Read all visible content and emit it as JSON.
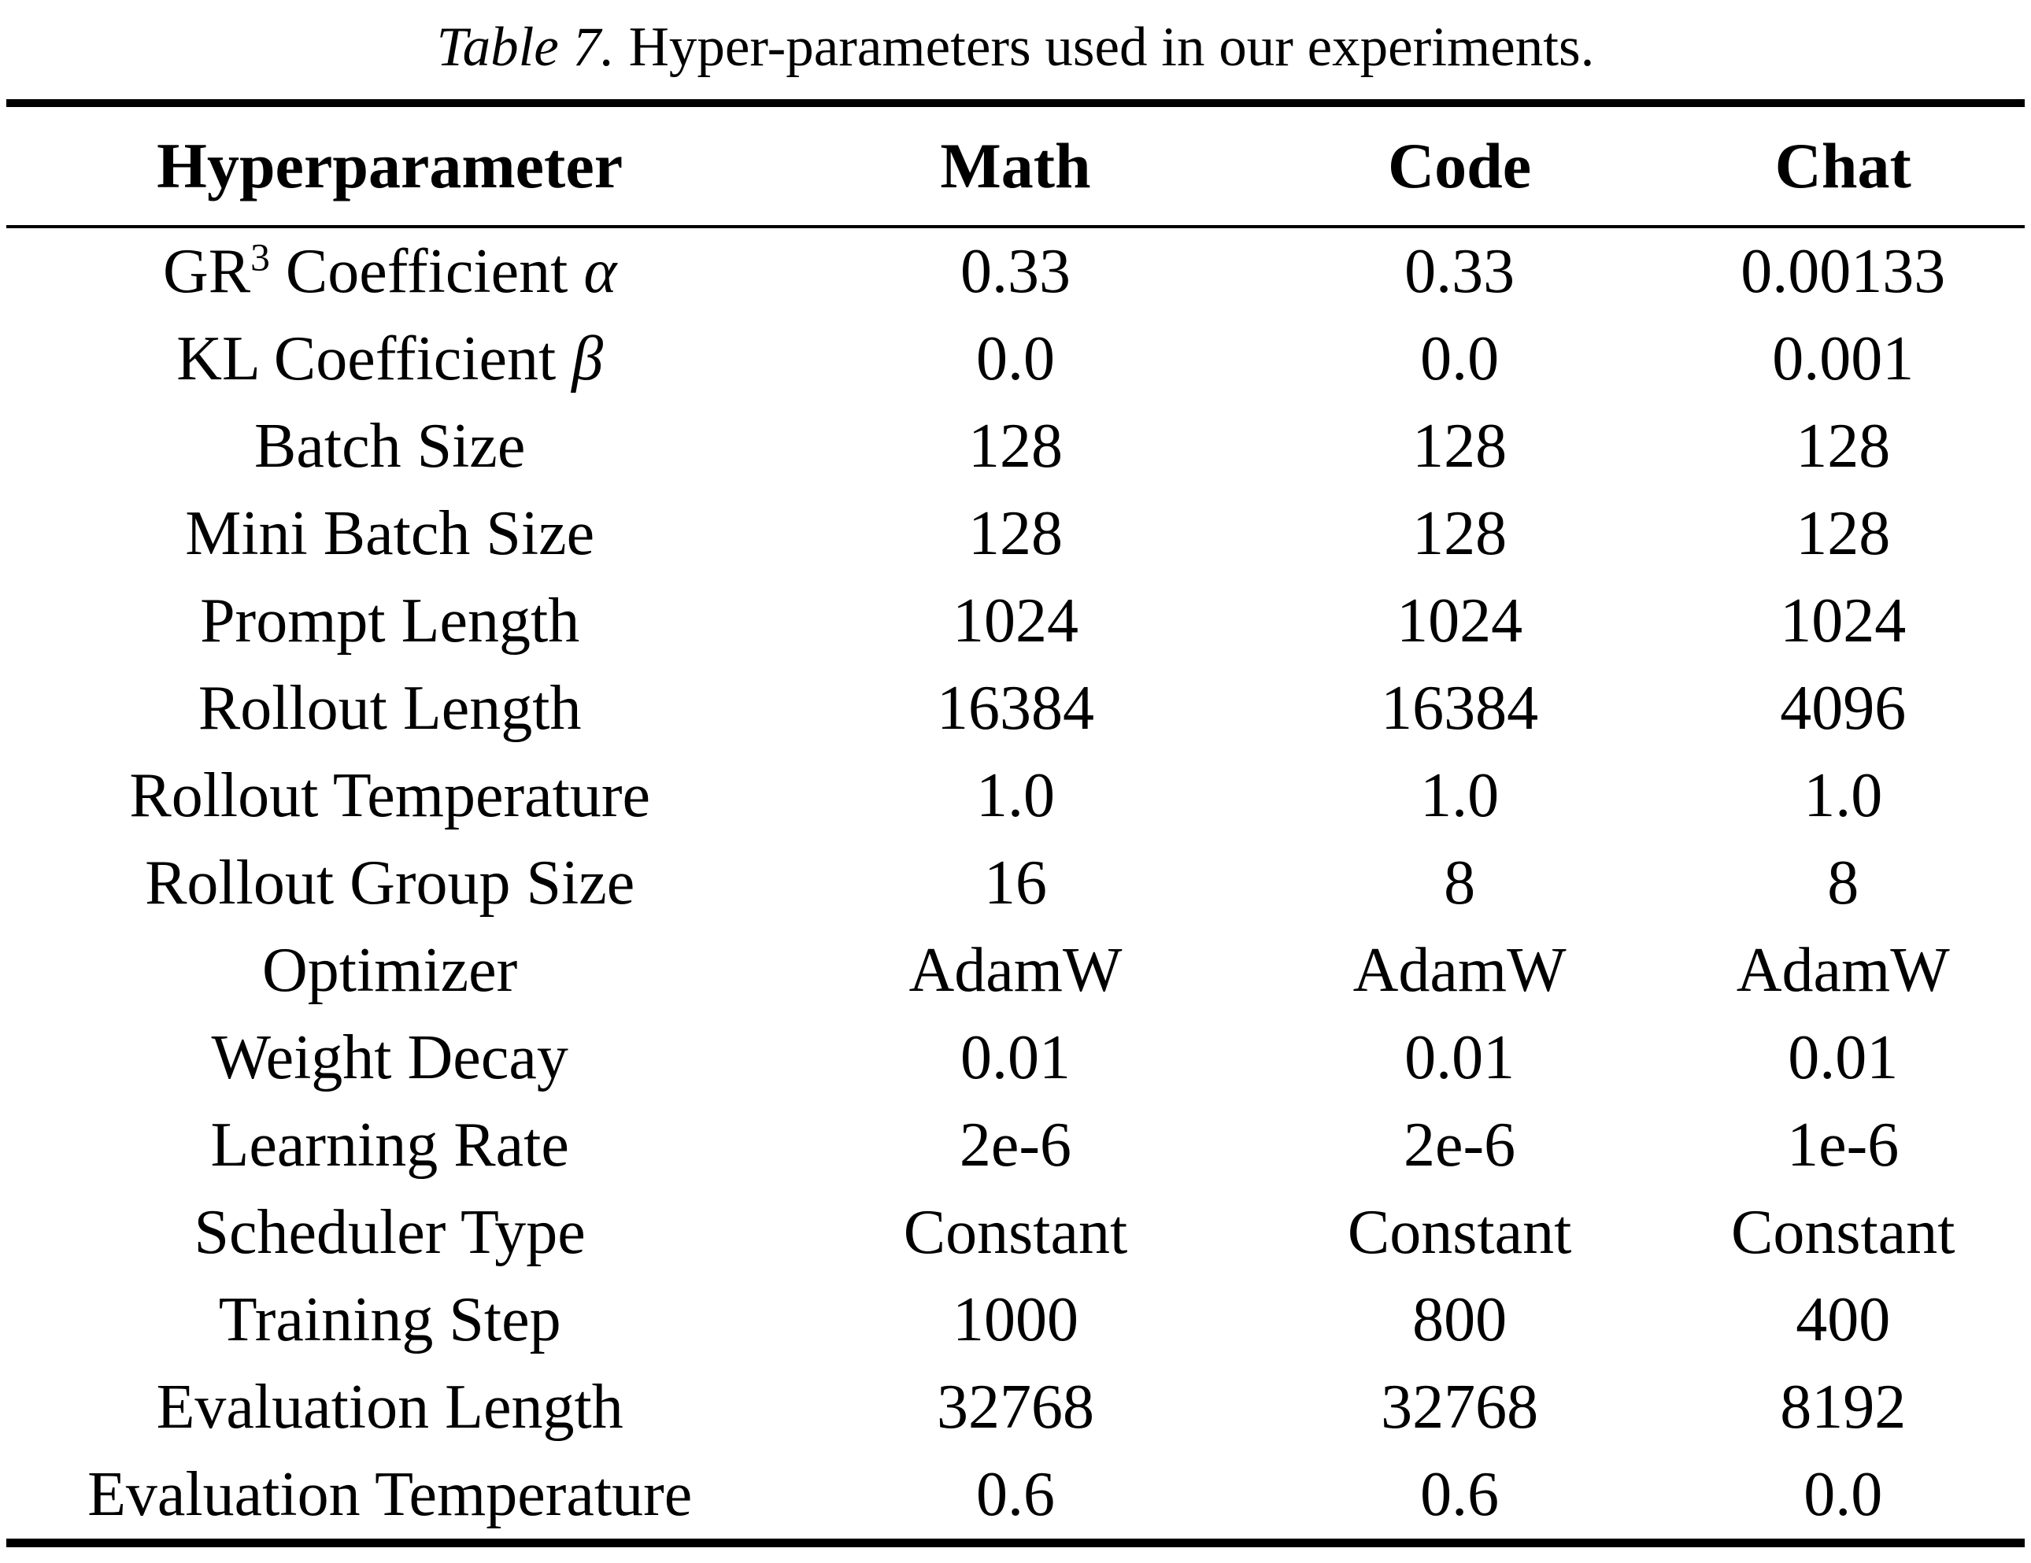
{
  "caption": {
    "label": "Table 7.",
    "text": " Hyper-parameters used in our experiments."
  },
  "table": {
    "columns": [
      "Hyperparameter",
      "Math",
      "Code",
      "Chat"
    ],
    "rows": [
      {
        "param": [
          [
            "GR",
            "n"
          ],
          [
            "3",
            "sup"
          ],
          [
            " Coefficient ",
            "n"
          ],
          [
            "α",
            "i"
          ]
        ],
        "values": [
          "0.33",
          "0.33",
          "0.00133"
        ]
      },
      {
        "param": [
          [
            "KL Coefficient ",
            "n"
          ],
          [
            "β",
            "i"
          ]
        ],
        "values": [
          "0.0",
          "0.0",
          "0.001"
        ]
      },
      {
        "param": [
          [
            "Batch Size",
            "n"
          ]
        ],
        "values": [
          "128",
          "128",
          "128"
        ]
      },
      {
        "param": [
          [
            "Mini Batch Size",
            "n"
          ]
        ],
        "values": [
          "128",
          "128",
          "128"
        ]
      },
      {
        "param": [
          [
            "Prompt Length",
            "n"
          ]
        ],
        "values": [
          "1024",
          "1024",
          "1024"
        ]
      },
      {
        "param": [
          [
            "Rollout Length",
            "n"
          ]
        ],
        "values": [
          "16384",
          "16384",
          "4096"
        ]
      },
      {
        "param": [
          [
            "Rollout Temperature",
            "n"
          ]
        ],
        "values": [
          "1.0",
          "1.0",
          "1.0"
        ]
      },
      {
        "param": [
          [
            "Rollout Group Size",
            "n"
          ]
        ],
        "values": [
          "16",
          "8",
          "8"
        ]
      },
      {
        "param": [
          [
            "Optimizer",
            "n"
          ]
        ],
        "values": [
          "AdamW",
          "AdamW",
          "AdamW"
        ]
      },
      {
        "param": [
          [
            "Weight Decay",
            "n"
          ]
        ],
        "values": [
          "0.01",
          "0.01",
          "0.01"
        ]
      },
      {
        "param": [
          [
            "Learning Rate",
            "n"
          ]
        ],
        "values": [
          "2e-6",
          "2e-6",
          "1e-6"
        ]
      },
      {
        "param": [
          [
            "Scheduler Type",
            "n"
          ]
        ],
        "values": [
          "Constant",
          "Constant",
          "Constant"
        ]
      },
      {
        "param": [
          [
            "Training Step",
            "n"
          ]
        ],
        "values": [
          "1000",
          "800",
          "400"
        ]
      },
      {
        "param": [
          [
            "Evaluation Length",
            "n"
          ]
        ],
        "values": [
          "32768",
          "32768",
          "8192"
        ]
      },
      {
        "param": [
          [
            "Evaluation Temperature",
            "n"
          ]
        ],
        "values": [
          "0.6",
          "0.6",
          "0.0"
        ]
      }
    ]
  },
  "colors": {
    "text": "#000000",
    "background": "#ffffff",
    "rule": "#000000"
  }
}
